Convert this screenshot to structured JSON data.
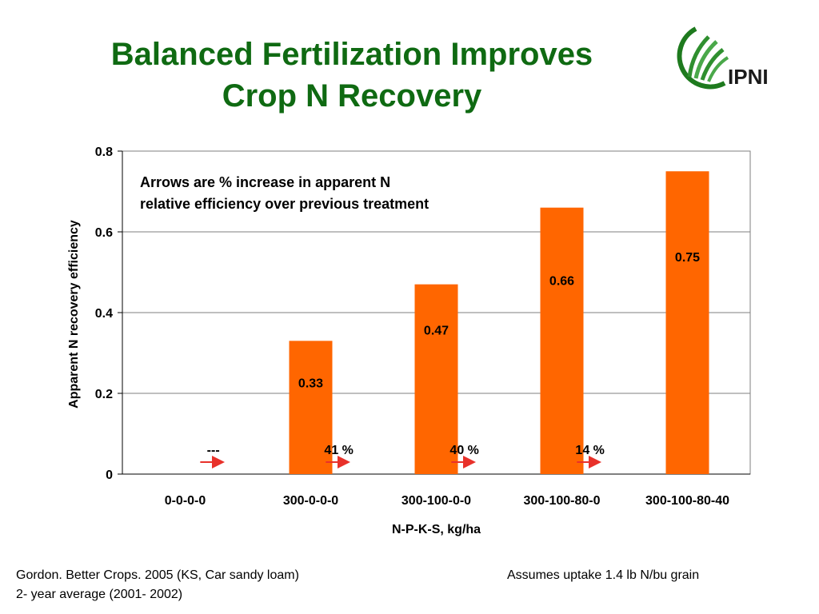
{
  "slide": {
    "title_line1": "Balanced Fertilization Improves",
    "title_line2": "Crop N Recovery",
    "logo_text": "IPNI",
    "footer_source_line1": "Gordon. Better Crops. 2005 (KS, Car sandy loam)",
    "footer_source_line2": "2- year average (2001- 2002)",
    "footer_note": "Assumes uptake 1.4 lb N/bu grain"
  },
  "colors": {
    "title": "#0f6a12",
    "bar": "#ff6600",
    "arrow": "#e8312a",
    "logo_green": "#1e7a1e"
  },
  "chart_data": {
    "type": "bar",
    "title": "",
    "xlabel": "N-P-K-S, kg/ha",
    "ylabel": "Apparent N recovery efficiency",
    "ylim": [
      0,
      0.8
    ],
    "yticks": [
      "0",
      "0.2",
      "0.4",
      "0.6",
      "0.8"
    ],
    "ytick_values": [
      0,
      0.2,
      0.4,
      0.6,
      0.8
    ],
    "grid": true,
    "categories": [
      "0-0-0-0",
      "300-0-0-0",
      "300-100-0-0",
      "300-100-80-0",
      "300-100-80-40"
    ],
    "values": [
      null,
      0.33,
      0.47,
      0.66,
      0.75
    ],
    "data_labels": [
      "",
      "0.33",
      "0.47",
      "0.66",
      "0.75"
    ],
    "annotation": "Arrows are % increase in apparent N relative efficiency over previous treatment",
    "annotation_line1": "Arrows are % increase in apparent N",
    "annotation_line2": "relative efficiency over previous treatment",
    "arrow_labels": [
      "---",
      "41 %",
      "40 %",
      "14 %"
    ]
  }
}
